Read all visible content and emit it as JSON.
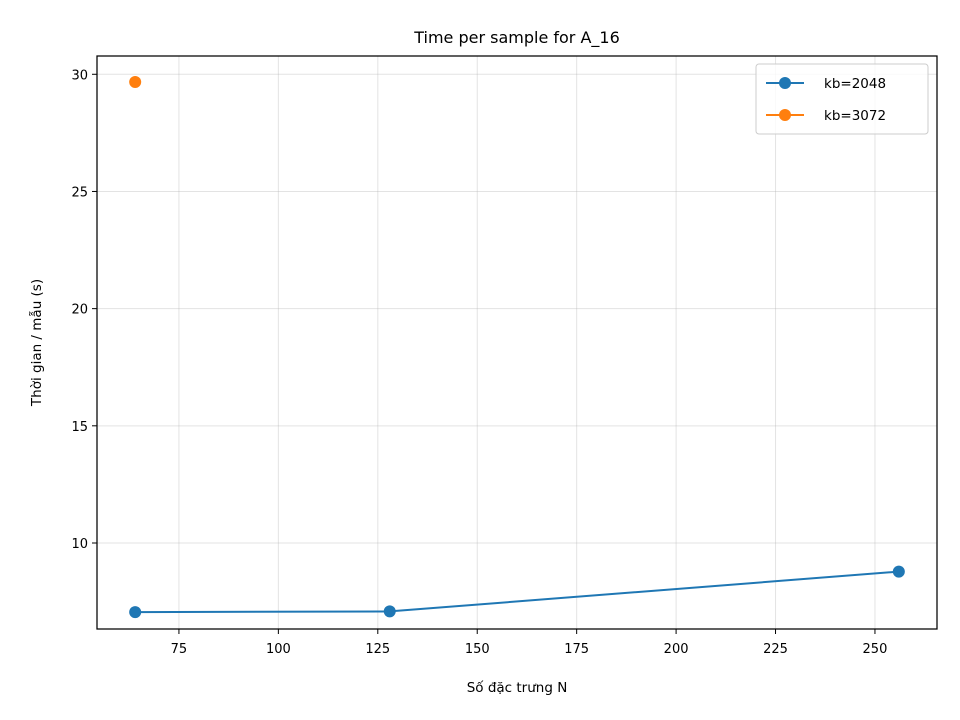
{
  "chart_data": {
    "type": "line",
    "title": "Time per sample for A_16",
    "xlabel": "Số đặc trưng N",
    "ylabel": "Thời gian / mẫu (s)",
    "xlim": [
      54.4,
      265.6
    ],
    "ylim": [
      6.33,
      30.78
    ],
    "xticks": [
      75,
      100,
      125,
      150,
      175,
      200,
      225,
      250
    ],
    "yticks": [
      10,
      15,
      20,
      25,
      30
    ],
    "grid": true,
    "legend_position": "top-right",
    "series": [
      {
        "name": "kb=2048",
        "color": "#1f77b4",
        "x": [
          64,
          128,
          256
        ],
        "y": [
          7.05,
          7.08,
          8.78
        ]
      },
      {
        "name": "kb=3072",
        "color": "#ff7f0e",
        "x": [
          64
        ],
        "y": [
          29.67
        ]
      }
    ]
  }
}
